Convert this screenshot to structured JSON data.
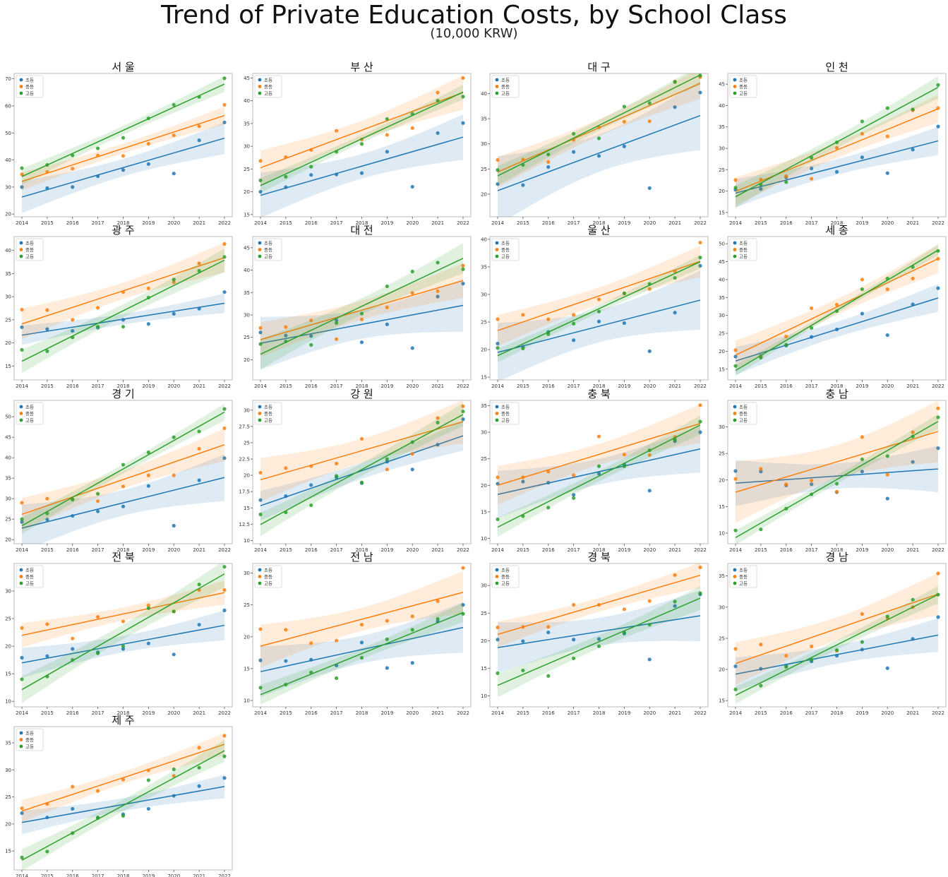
{
  "title": "Trend of Private Education Costs, by School Class",
  "subtitle": "(10,000 KRW)",
  "colors": {
    "s0": "#1f77b4",
    "s1": "#ff7f0e",
    "s2": "#2ca02c"
  },
  "chart_data": [
    {
      "type": "scatter",
      "title": "서 울",
      "x": [
        2014,
        2015,
        2016,
        2017,
        2018,
        2019,
        2020,
        2021,
        2022
      ],
      "ylim": [
        19,
        72
      ],
      "yticks": [
        20,
        30,
        40,
        50,
        60,
        70
      ],
      "legend": [
        "초등",
        "중등",
        "고등"
      ],
      "series": [
        {
          "name": "초등",
          "values": [
            30,
            29.6,
            30,
            34,
            36.3,
            38.5,
            35,
            47.3,
            53.9
          ]
        },
        {
          "name": "중등",
          "values": [
            34.7,
            35.6,
            36.8,
            41.7,
            41.5,
            46,
            49.1,
            52.5,
            60.4
          ]
        },
        {
          "name": "고등",
          "values": [
            37,
            38.2,
            41.7,
            44.3,
            48.2,
            55.4,
            60.4,
            63.3,
            70.2
          ]
        }
      ]
    },
    {
      "type": "scatter",
      "title": "부 산",
      "x": [
        2014,
        2015,
        2016,
        2017,
        2018,
        2019,
        2020,
        2021,
        2022
      ],
      "ylim": [
        14.5,
        46
      ],
      "yticks": [
        15,
        20,
        25,
        30,
        35,
        40,
        45
      ],
      "legend": [
        "초등",
        "중등",
        "고등"
      ],
      "series": [
        {
          "name": "초등",
          "values": [
            20,
            21,
            23.7,
            23.8,
            24.1,
            28.8,
            21.1,
            32.9,
            35.1
          ]
        },
        {
          "name": "중등",
          "values": [
            26.8,
            27.6,
            29.2,
            33.4,
            31.5,
            32.5,
            34,
            41.8,
            45
          ]
        },
        {
          "name": "고등",
          "values": [
            22.5,
            23.3,
            25.5,
            28.8,
            30.5,
            36,
            37.1,
            40,
            40.9
          ]
        }
      ]
    },
    {
      "type": "scatter",
      "title": "대 구",
      "x": [
        2014,
        2015,
        2016,
        2017,
        2018,
        2019,
        2020,
        2021,
        2022
      ],
      "ylim": [
        15.5,
        44
      ],
      "yticks": [
        20,
        25,
        30,
        35,
        40
      ],
      "legend": [
        "초등",
        "중등",
        "고등"
      ],
      "series": [
        {
          "name": "초등",
          "values": [
            22,
            21.8,
            25.4,
            28.4,
            27.6,
            29.5,
            21.2,
            37.3,
            40.2
          ]
        },
        {
          "name": "중등",
          "values": [
            26.8,
            26.9,
            26.4,
            30.8,
            33.3,
            34.4,
            34.5,
            42.4,
            43.3
          ]
        },
        {
          "name": "고등",
          "values": [
            24.8,
            25.8,
            27.9,
            32,
            31.1,
            37.4,
            38.1,
            42.3,
            43.6
          ]
        }
      ]
    },
    {
      "type": "scatter",
      "title": "인 천",
      "x": [
        2014,
        2015,
        2016,
        2017,
        2018,
        2019,
        2020,
        2021,
        2022
      ],
      "ylim": [
        14,
        47.5
      ],
      "yticks": [
        15,
        20,
        25,
        30,
        35,
        40,
        45
      ],
      "legend": [
        "초등",
        "중등",
        "고등"
      ],
      "series": [
        {
          "name": "초등",
          "values": [
            20.3,
            20.5,
            23.2,
            25.3,
            24.5,
            27.9,
            24.2,
            29.7,
            35.1
          ]
        },
        {
          "name": "중등",
          "values": [
            22.6,
            22.7,
            23.5,
            22.9,
            30.1,
            33.4,
            32.8,
            38.9,
            39.4
          ]
        },
        {
          "name": "고등",
          "values": [
            20.8,
            21.5,
            22.1,
            27.8,
            31.4,
            36.3,
            39.4,
            39.1,
            44.8
          ]
        }
      ]
    },
    {
      "type": "scatter",
      "title": "광 주",
      "x": [
        2014,
        2015,
        2016,
        2017,
        2018,
        2019,
        2020,
        2021,
        2022
      ],
      "ylim": [
        12,
        43
      ],
      "yticks": [
        15,
        20,
        25,
        30,
        35,
        40
      ],
      "legend": [
        "초등",
        "중등",
        "고등"
      ],
      "series": [
        {
          "name": "초등",
          "values": [
            23.4,
            23,
            22.6,
            23.3,
            25,
            24.1,
            26.3,
            27.4,
            31
          ]
        },
        {
          "name": "중등",
          "values": [
            27.2,
            27.1,
            25,
            27.6,
            31,
            31.8,
            33.1,
            37.2,
            41.4
          ]
        },
        {
          "name": "고등",
          "values": [
            18.5,
            18.2,
            21.2,
            23.5,
            23.5,
            29.8,
            33.7,
            35.6,
            38.6
          ]
        }
      ]
    },
    {
      "type": "scatter",
      "title": "대 전",
      "x": [
        2014,
        2015,
        2016,
        2017,
        2018,
        2019,
        2020,
        2021,
        2022
      ],
      "ylim": [
        15.5,
        47.5
      ],
      "yticks": [
        20,
        25,
        30,
        35,
        40,
        45
      ],
      "legend": [
        "초등",
        "중등",
        "고등"
      ],
      "series": [
        {
          "name": "초등",
          "values": [
            26.1,
            25.4,
            25.3,
            28.8,
            23.9,
            27.9,
            22.6,
            34.1,
            37
          ]
        },
        {
          "name": "중등",
          "values": [
            27.1,
            27.3,
            28.8,
            24.6,
            29,
            31.7,
            34.9,
            35.3,
            41
          ]
        },
        {
          "name": "고등",
          "values": [
            23.5,
            24.1,
            23.3,
            28.2,
            30.3,
            36.4,
            39.7,
            41.7,
            40.2
          ]
        }
      ]
    },
    {
      "type": "scatter",
      "title": "울 산",
      "x": [
        2014,
        2015,
        2016,
        2017,
        2018,
        2019,
        2020,
        2021,
        2022
      ],
      "ylim": [
        14.5,
        40.5
      ],
      "yticks": [
        15,
        20,
        25,
        30,
        35,
        40
      ],
      "legend": [
        "초등",
        "중등",
        "고등"
      ],
      "series": [
        {
          "name": "초등",
          "values": [
            21.1,
            20.5,
            23.2,
            21.7,
            25.1,
            24.8,
            19.7,
            26.7,
            35.2
          ]
        },
        {
          "name": "중등",
          "values": [
            25.5,
            26.3,
            25.5,
            26.3,
            29.1,
            30.2,
            31,
            34.2,
            39.4
          ]
        },
        {
          "name": "고등",
          "values": [
            20.3,
            20.2,
            22.8,
            24.7,
            26.9,
            30.2,
            31.9,
            33,
            36.7
          ]
        }
      ]
    },
    {
      "type": "scatter",
      "title": "세 종",
      "x": [
        2014,
        2015,
        2016,
        2017,
        2018,
        2019,
        2020,
        2021,
        2022
      ],
      "ylim": [
        12,
        52
      ],
      "yticks": [
        15,
        20,
        25,
        30,
        35,
        40,
        45,
        50
      ],
      "legend": [
        "초등",
        "중등",
        "고등"
      ],
      "series": [
        {
          "name": "초등",
          "values": [
            18.5,
            18.7,
            21.6,
            24,
            26.1,
            30.5,
            24.5,
            33.1,
            37.6
          ]
        },
        {
          "name": "중등",
          "values": [
            20.3,
            18.5,
            24.1,
            32,
            33,
            40,
            37.3,
            40.3,
            45.8
          ]
        },
        {
          "name": "고등",
          "values": [
            15.9,
            18.2,
            21.8,
            26.5,
            31.2,
            37.3,
            40.3,
            43.5,
            48
          ]
        }
      ]
    },
    {
      "type": "scatter",
      "title": "경 기",
      "x": [
        2014,
        2015,
        2016,
        2017,
        2018,
        2019,
        2020,
        2021,
        2022
      ],
      "ylim": [
        19,
        54
      ],
      "yticks": [
        20,
        25,
        30,
        35,
        40,
        45,
        50
      ],
      "legend": [
        "초등",
        "중등",
        "고등"
      ],
      "series": [
        {
          "name": "초등",
          "values": [
            24.3,
            24.9,
            25.8,
            26.9,
            28.1,
            33.1,
            23.4,
            34.5,
            39.9
          ]
        },
        {
          "name": "중등",
          "values": [
            29,
            30,
            29.8,
            29.4,
            33,
            35.7,
            35.7,
            42.2,
            47.2
          ]
        },
        {
          "name": "고등",
          "values": [
            25,
            26.4,
            29.8,
            31.2,
            38.3,
            41.3,
            45,
            46.4,
            51.9
          ]
        }
      ]
    },
    {
      "type": "scatter",
      "title": "강 원",
      "x": [
        2014,
        2015,
        2016,
        2017,
        2018,
        2019,
        2020,
        2021,
        2022
      ],
      "ylim": [
        9.5,
        31.5
      ],
      "yticks": [
        10.0,
        12.5,
        15.0,
        17.5,
        20.0,
        22.5,
        25.0,
        27.5,
        30.0
      ],
      "legend": [
        "초등",
        "중등",
        "고등"
      ],
      "series": [
        {
          "name": "초등",
          "values": [
            16.2,
            16.8,
            18.5,
            19.7,
            18.8,
            22.1,
            20.9,
            24.7,
            28.6
          ]
        },
        {
          "name": "중등",
          "values": [
            20.4,
            21.1,
            21.4,
            21.8,
            25.6,
            20.9,
            23.3,
            28.8,
            30.6
          ]
        },
        {
          "name": "고등",
          "values": [
            14,
            14.3,
            15.4,
            19.9,
            18.9,
            22.5,
            25.1,
            28.1,
            29.8
          ]
        }
      ]
    },
    {
      "type": "scatter",
      "title": "충 북",
      "x": [
        2014,
        2015,
        2016,
        2017,
        2018,
        2019,
        2020,
        2021,
        2022
      ],
      "ylim": [
        9,
        36
      ],
      "yticks": [
        10,
        15,
        20,
        25,
        30,
        35
      ],
      "legend": [
        "초등",
        "중등",
        "고등"
      ],
      "series": [
        {
          "name": "초등",
          "values": [
            20.3,
            20.7,
            20.5,
            18.2,
            22.2,
            23.9,
            19,
            28.3,
            30
          ]
        },
        {
          "name": "중등",
          "values": [
            21.5,
            21.5,
            22.6,
            21.9,
            29.2,
            25.8,
            25.7,
            29.1,
            35.1
          ]
        },
        {
          "name": "고등",
          "values": [
            13.6,
            14.2,
            15.8,
            17.6,
            23.6,
            23.6,
            26.6,
            28.6,
            32
          ]
        }
      ]
    },
    {
      "type": "scatter",
      "title": "충 남",
      "x": [
        2014,
        2015,
        2016,
        2017,
        2018,
        2019,
        2020,
        2021,
        2022
      ],
      "ylim": [
        8,
        35
      ],
      "yticks": [
        10,
        15,
        20,
        25,
        30
      ],
      "legend": [
        "초등",
        "중등",
        "고등"
      ],
      "series": [
        {
          "name": "초등",
          "values": [
            21.7,
            21.6,
            19,
            19.2,
            17.7,
            21.6,
            16.5,
            23.4,
            26
          ]
        },
        {
          "name": "중등",
          "values": [
            20.2,
            22.1,
            19.2,
            19.9,
            17.8,
            28.1,
            21,
            29,
            33.5
          ]
        },
        {
          "name": "고등",
          "values": [
            10.5,
            10.7,
            14.6,
            17.3,
            19.3,
            23.9,
            24.5,
            28.2,
            31.8
          ]
        }
      ]
    },
    {
      "type": "scatter",
      "title": "전 북",
      "x": [
        2014,
        2015,
        2016,
        2017,
        2018,
        2019,
        2020,
        2021,
        2022
      ],
      "ylim": [
        9,
        35
      ],
      "yticks": [
        10,
        15,
        20,
        25,
        30
      ],
      "legend": [
        "초등",
        "중등",
        "고등"
      ],
      "series": [
        {
          "name": "초등",
          "values": [
            17.9,
            18.2,
            19.5,
            18.9,
            19.5,
            20.5,
            18.5,
            23.9,
            26.5
          ]
        },
        {
          "name": "중등",
          "values": [
            23.3,
            24,
            21.4,
            25.3,
            24.5,
            27.4,
            26.3,
            30.2,
            30.2
          ]
        },
        {
          "name": "고등",
          "values": [
            14,
            14.5,
            17.5,
            18.7,
            20,
            26.9,
            26.3,
            31.2,
            34.4
          ]
        }
      ]
    },
    {
      "type": "scatter",
      "title": "전 남",
      "x": [
        2014,
        2015,
        2016,
        2017,
        2018,
        2019,
        2020,
        2021,
        2022
      ],
      "ylim": [
        9,
        31.5
      ],
      "yticks": [
        10,
        15,
        20,
        25,
        30
      ],
      "legend": [
        "초등",
        "중등",
        "고등"
      ],
      "series": [
        {
          "name": "초등",
          "values": [
            16.3,
            16.2,
            16.4,
            15.5,
            19.1,
            15.1,
            15.9,
            22.4,
            25
          ]
        },
        {
          "name": "중등",
          "values": [
            21.2,
            21.1,
            19,
            19.4,
            21.9,
            22.5,
            23.2,
            25.6,
            30.8
          ]
        },
        {
          "name": "고등",
          "values": [
            12,
            12.5,
            14.4,
            13.5,
            16.7,
            19.6,
            21.1,
            22.8,
            23.6
          ]
        }
      ]
    },
    {
      "type": "scatter",
      "title": "경 북",
      "x": [
        2014,
        2015,
        2016,
        2017,
        2018,
        2019,
        2020,
        2021,
        2022
      ],
      "ylim": [
        8,
        34
      ],
      "yticks": [
        10,
        15,
        20,
        25,
        30
      ],
      "legend": [
        "초등",
        "중등",
        "고등"
      ],
      "series": [
        {
          "name": "초등",
          "values": [
            20.2,
            19.9,
            21.5,
            20.2,
            20.3,
            21.3,
            16.6,
            26.3,
            28.4
          ]
        },
        {
          "name": "중등",
          "values": [
            22.4,
            22.5,
            22.5,
            26.5,
            26.5,
            25.7,
            27.2,
            31.9,
            33.3
          ]
        },
        {
          "name": "고등",
          "values": [
            14.1,
            14.6,
            13.6,
            16.8,
            19,
            21.5,
            22.9,
            27.1,
            28.6
          ]
        }
      ]
    },
    {
      "type": "scatter",
      "title": "경 남",
      "x": [
        2014,
        2015,
        2016,
        2017,
        2018,
        2019,
        2020,
        2021,
        2022
      ],
      "ylim": [
        14,
        37
      ],
      "yticks": [
        15,
        20,
        25,
        30,
        35
      ],
      "legend": [
        "초등",
        "중등",
        "고등"
      ],
      "series": [
        {
          "name": "초등",
          "values": [
            20.5,
            20.1,
            20.6,
            21.3,
            22.2,
            23.2,
            20.2,
            24.9,
            28.4
          ]
        },
        {
          "name": "중등",
          "values": [
            23.3,
            24,
            22.2,
            23.7,
            23,
            28.9,
            28.2,
            30,
            35.4
          ]
        },
        {
          "name": "고등",
          "values": [
            16.8,
            17.4,
            20.4,
            21.6,
            23.1,
            24.4,
            28.5,
            31.2,
            32
          ]
        }
      ]
    },
    {
      "type": "scatter",
      "title": "제 주",
      "x": [
        2014,
        2015,
        2016,
        2017,
        2018,
        2019,
        2020,
        2021,
        2022
      ],
      "ylim": [
        11.5,
        38
      ],
      "yticks": [
        15,
        20,
        25,
        30,
        35
      ],
      "legend": [
        "초등",
        "중등",
        "고등"
      ],
      "series": [
        {
          "name": "초등",
          "values": [
            22,
            21.2,
            22.8,
            21.1,
            21.8,
            22.8,
            25.2,
            27,
            28.5
          ]
        },
        {
          "name": "중등",
          "values": [
            22.9,
            23.7,
            26.9,
            26.1,
            28.2,
            29.9,
            28.9,
            34.1,
            36.3
          ]
        },
        {
          "name": "고등",
          "values": [
            13.8,
            14.9,
            18.3,
            21.2,
            21.5,
            28.1,
            30.1,
            30.4,
            32.5
          ]
        }
      ]
    }
  ]
}
